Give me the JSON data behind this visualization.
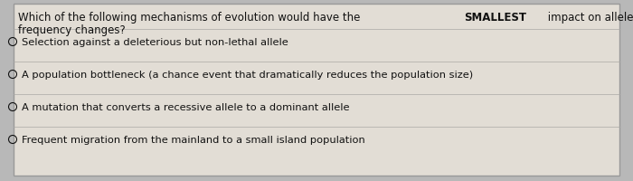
{
  "question_part1": "Which of the following mechanisms of evolution would have the ",
  "question_bold": "SMALLEST",
  "question_part2": " impact on allele",
  "question_line2": "frequency changes?",
  "options": [
    "Selection against a deleterious but non-lethal allele",
    "A population bottleneck (a chance event that dramatically reduces the population size)",
    "A mutation that converts a recessive allele to a dominant allele",
    "Frequent migration from the mainland to a small island population"
  ],
  "bg_color": "#b8b8b8",
  "inner_bg_color": "#e2ddd5",
  "text_color": "#111111",
  "border_color": "#999999",
  "divider_color": "#aaa9a5",
  "font_size_question": 8.5,
  "font_size_options": 8.2
}
